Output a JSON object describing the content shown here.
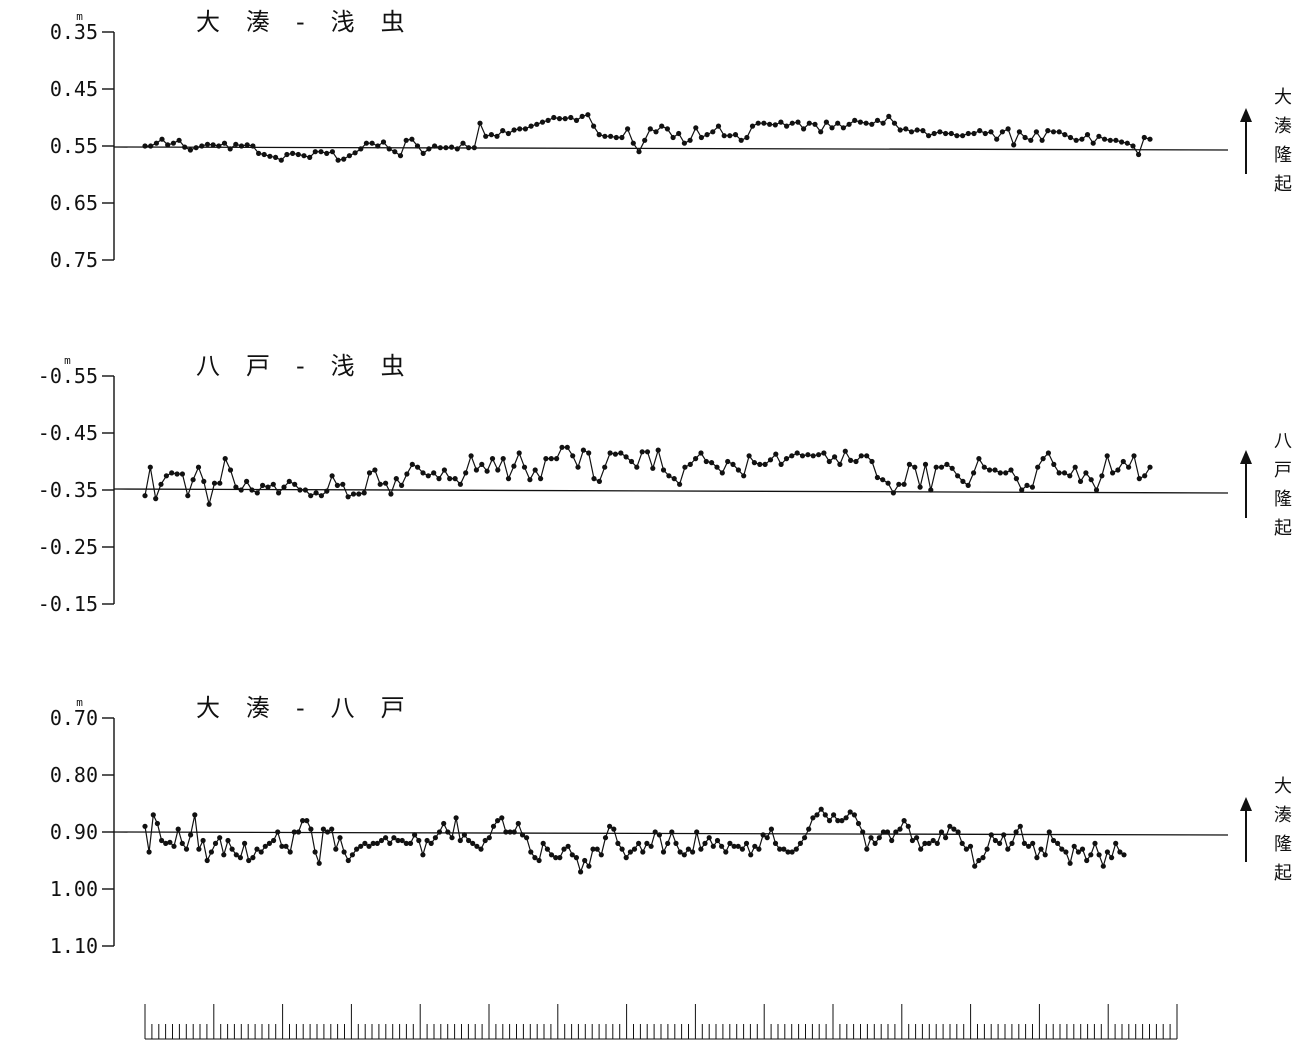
{
  "chart_data": [
    {
      "type": "line",
      "title": "大 湊 - 浅 虫",
      "y_unit": "m",
      "y_ticks": [
        "0.35",
        "0.45",
        "0.55",
        "0.65",
        "0.75"
      ],
      "ylim": [
        0.75,
        0.35
      ],
      "reference_line": 0.55,
      "side_label": [
        "大",
        "湊",
        "隆",
        "起"
      ],
      "grid": false,
      "values": [
        0.55,
        0.55,
        0.545,
        0.538,
        0.548,
        0.545,
        0.54,
        0.552,
        0.557,
        0.553,
        0.55,
        0.547,
        0.548,
        0.55,
        0.545,
        0.555,
        0.547,
        0.55,
        0.548,
        0.55,
        0.563,
        0.565,
        0.568,
        0.57,
        0.575,
        0.565,
        0.563,
        0.565,
        0.567,
        0.57,
        0.56,
        0.56,
        0.563,
        0.56,
        0.575,
        0.573,
        0.567,
        0.562,
        0.555,
        0.545,
        0.545,
        0.55,
        0.543,
        0.555,
        0.56,
        0.567,
        0.54,
        0.538,
        0.55,
        0.563,
        0.555,
        0.55,
        0.553,
        0.553,
        0.552,
        0.555,
        0.545,
        0.553,
        0.553,
        0.51,
        0.533,
        0.53,
        0.533,
        0.523,
        0.528,
        0.522,
        0.52,
        0.52,
        0.515,
        0.512,
        0.508,
        0.505,
        0.5,
        0.502,
        0.502,
        0.5,
        0.505,
        0.498,
        0.495,
        0.515,
        0.53,
        0.533,
        0.533,
        0.535,
        0.535,
        0.52,
        0.545,
        0.56,
        0.54,
        0.52,
        0.525,
        0.515,
        0.52,
        0.535,
        0.528,
        0.545,
        0.54,
        0.518,
        0.535,
        0.53,
        0.525,
        0.515,
        0.532,
        0.532,
        0.53,
        0.54,
        0.535,
        0.515,
        0.51,
        0.51,
        0.512,
        0.513,
        0.508,
        0.515,
        0.51,
        0.508,
        0.52,
        0.51,
        0.512,
        0.525,
        0.508,
        0.518,
        0.51,
        0.518,
        0.512,
        0.505,
        0.508,
        0.51,
        0.512,
        0.505,
        0.51,
        0.498,
        0.51,
        0.522,
        0.52,
        0.525,
        0.522,
        0.523,
        0.532,
        0.528,
        0.525,
        0.528,
        0.528,
        0.532,
        0.532,
        0.528,
        0.528,
        0.523,
        0.528,
        0.525,
        0.538,
        0.525,
        0.52,
        0.548,
        0.525,
        0.535,
        0.54,
        0.525,
        0.54,
        0.523,
        0.525,
        0.525,
        0.53,
        0.535,
        0.54,
        0.538,
        0.53,
        0.545,
        0.533,
        0.538,
        0.54,
        0.54,
        0.543,
        0.545,
        0.55,
        0.565,
        0.535,
        0.538
      ]
    },
    {
      "type": "line",
      "title": "八 戸 - 浅 虫",
      "y_unit": "m",
      "y_ticks": [
        "-0.55",
        "-0.45",
        "-0.35",
        "-0.25",
        "-0.15"
      ],
      "ylim": [
        -0.15,
        -0.55
      ],
      "reference_line": -0.35,
      "side_label": [
        "八",
        "戸",
        "隆",
        "起"
      ],
      "grid": false,
      "values": [
        -0.34,
        -0.39,
        -0.335,
        -0.36,
        -0.375,
        -0.38,
        -0.378,
        -0.378,
        -0.34,
        -0.368,
        -0.39,
        -0.365,
        -0.325,
        -0.362,
        -0.362,
        -0.405,
        -0.385,
        -0.355,
        -0.35,
        -0.365,
        -0.35,
        -0.345,
        -0.358,
        -0.355,
        -0.36,
        -0.345,
        -0.355,
        -0.365,
        -0.36,
        -0.35,
        -0.35,
        -0.34,
        -0.345,
        -0.34,
        -0.348,
        -0.375,
        -0.358,
        -0.36,
        -0.338,
        -0.343,
        -0.343,
        -0.345,
        -0.38,
        -0.385,
        -0.36,
        -0.362,
        -0.343,
        -0.37,
        -0.358,
        -0.378,
        -0.395,
        -0.39,
        -0.38,
        -0.375,
        -0.38,
        -0.37,
        -0.385,
        -0.37,
        -0.37,
        -0.36,
        -0.38,
        -0.41,
        -0.385,
        -0.395,
        -0.383,
        -0.405,
        -0.385,
        -0.405,
        -0.37,
        -0.392,
        -0.415,
        -0.39,
        -0.368,
        -0.385,
        -0.37,
        -0.405,
        -0.405,
        -0.405,
        -0.425,
        -0.425,
        -0.41,
        -0.39,
        -0.42,
        -0.415,
        -0.37,
        -0.365,
        -0.39,
        -0.415,
        -0.413,
        -0.415,
        -0.408,
        -0.4,
        -0.39,
        -0.417,
        -0.417,
        -0.388,
        -0.42,
        -0.385,
        -0.375,
        -0.37,
        -0.36,
        -0.39,
        -0.395,
        -0.405,
        -0.415,
        -0.4,
        -0.398,
        -0.39,
        -0.38,
        -0.4,
        -0.395,
        -0.385,
        -0.375,
        -0.41,
        -0.398,
        -0.395,
        -0.395,
        -0.403,
        -0.413,
        -0.395,
        -0.405,
        -0.41,
        -0.415,
        -0.41,
        -0.412,
        -0.41,
        -0.412,
        -0.415,
        -0.4,
        -0.408,
        -0.395,
        -0.418,
        -0.402,
        -0.4,
        -0.41,
        -0.41,
        -0.4,
        -0.372,
        -0.368,
        -0.362,
        -0.345,
        -0.36,
        -0.36,
        -0.395,
        -0.39,
        -0.355,
        -0.395,
        -0.35,
        -0.39,
        -0.39,
        -0.395,
        -0.388,
        -0.375,
        -0.365,
        -0.358,
        -0.38,
        -0.405,
        -0.39,
        -0.385,
        -0.385,
        -0.38,
        -0.38,
        -0.385,
        -0.37,
        -0.35,
        -0.358,
        -0.355,
        -0.39,
        -0.405,
        -0.415,
        -0.395,
        -0.38,
        -0.38,
        -0.375,
        -0.39,
        -0.365,
        -0.38,
        -0.368,
        -0.35,
        -0.375,
        -0.41,
        -0.38,
        -0.385,
        -0.4,
        -0.39,
        -0.41,
        -0.37,
        -0.375,
        -0.39
      ]
    },
    {
      "type": "line",
      "title": "大 湊 - 八 戸",
      "y_unit": "m",
      "y_ticks": [
        "0.70",
        "0.80",
        "0.90",
        "1.00",
        "1.10"
      ],
      "ylim": [
        1.1,
        0.7
      ],
      "reference_line": 0.9,
      "side_label": [
        "大",
        "湊",
        "隆",
        "起"
      ],
      "grid": false,
      "values": [
        0.89,
        0.935,
        0.87,
        0.885,
        0.915,
        0.92,
        0.918,
        0.925,
        0.895,
        0.92,
        0.93,
        0.905,
        0.87,
        0.93,
        0.915,
        0.95,
        0.935,
        0.92,
        0.91,
        0.94,
        0.915,
        0.93,
        0.94,
        0.945,
        0.92,
        0.95,
        0.945,
        0.93,
        0.935,
        0.925,
        0.92,
        0.915,
        0.9,
        0.925,
        0.925,
        0.935,
        0.9,
        0.9,
        0.88,
        0.88,
        0.895,
        0.935,
        0.955,
        0.895,
        0.9,
        0.895,
        0.93,
        0.91,
        0.935,
        0.95,
        0.94,
        0.93,
        0.925,
        0.92,
        0.925,
        0.92,
        0.92,
        0.915,
        0.91,
        0.92,
        0.91,
        0.915,
        0.915,
        0.92,
        0.92,
        0.905,
        0.915,
        0.94,
        0.915,
        0.92,
        0.91,
        0.9,
        0.885,
        0.9,
        0.91,
        0.875,
        0.915,
        0.905,
        0.915,
        0.92,
        0.925,
        0.93,
        0.915,
        0.91,
        0.89,
        0.88,
        0.875,
        0.9,
        0.9,
        0.9,
        0.885,
        0.905,
        0.91,
        0.935,
        0.945,
        0.95,
        0.92,
        0.93,
        0.94,
        0.945,
        0.945,
        0.93,
        0.925,
        0.94,
        0.945,
        0.97,
        0.95,
        0.96,
        0.93,
        0.93,
        0.94,
        0.91,
        0.89,
        0.895,
        0.92,
        0.93,
        0.945,
        0.935,
        0.93,
        0.92,
        0.935,
        0.92,
        0.925,
        0.9,
        0.905,
        0.935,
        0.92,
        0.9,
        0.92,
        0.935,
        0.94,
        0.93,
        0.935,
        0.9,
        0.93,
        0.92,
        0.91,
        0.925,
        0.915,
        0.925,
        0.935,
        0.92,
        0.925,
        0.925,
        0.93,
        0.92,
        0.94,
        0.925,
        0.93,
        0.905,
        0.91,
        0.895,
        0.92,
        0.93,
        0.93,
        0.935,
        0.935,
        0.93,
        0.92,
        0.91,
        0.895,
        0.875,
        0.87,
        0.86,
        0.87,
        0.88,
        0.87,
        0.88,
        0.88,
        0.875,
        0.865,
        0.87,
        0.885,
        0.9,
        0.93,
        0.91,
        0.92,
        0.91,
        0.9,
        0.9,
        0.915,
        0.9,
        0.895,
        0.88,
        0.89,
        0.915,
        0.91,
        0.93,
        0.92,
        0.92,
        0.915,
        0.92,
        0.9,
        0.91,
        0.89,
        0.895,
        0.9,
        0.92,
        0.93,
        0.925,
        0.96,
        0.95,
        0.945,
        0.93,
        0.905,
        0.915,
        0.92,
        0.905,
        0.93,
        0.92,
        0.9,
        0.89,
        0.92,
        0.925,
        0.92,
        0.945,
        0.93,
        0.94,
        0.9,
        0.915,
        0.92,
        0.93,
        0.935,
        0.955,
        0.925,
        0.935,
        0.93,
        0.95,
        0.94,
        0.92,
        0.94,
        0.96,
        0.935,
        0.945,
        0.92,
        0.935,
        0.94
      ]
    }
  ]
}
